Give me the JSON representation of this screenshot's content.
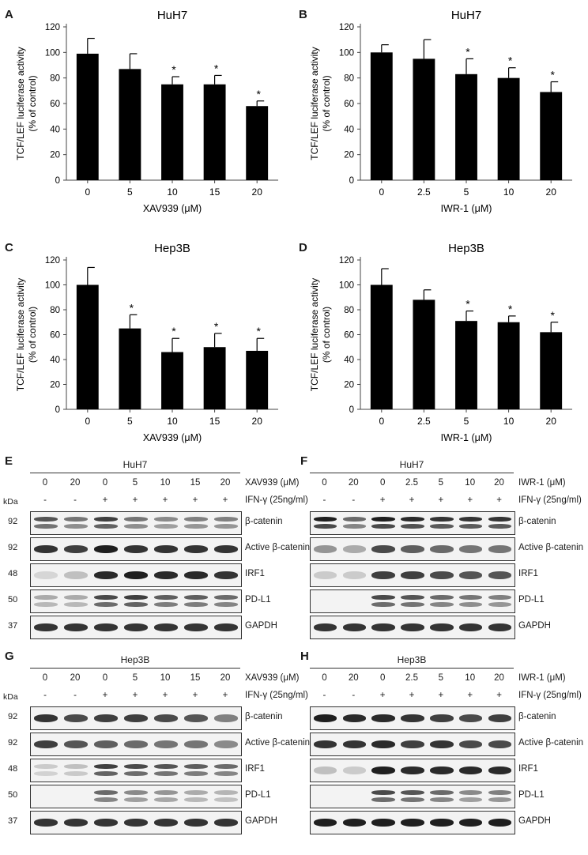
{
  "charts": {
    "A": {
      "letter": "A",
      "title": "HuH7",
      "xlabel": "XAV939 (μM)",
      "ylabel_line1": "TCF/LEF luciferase activity",
      "ylabel_line2": "(% of control)"
    },
    "B": {
      "letter": "B",
      "title": "HuH7",
      "xlabel": "IWR-1 (μM)",
      "ylabel_line1": "TCF/LEF luciferase activity",
      "ylabel_line2": "(% of control)"
    },
    "C": {
      "letter": "C",
      "title": "Hep3B",
      "xlabel": "XAV939 (μM)",
      "ylabel_line1": "TCF/LEF luciferase activity",
      "ylabel_line2": "(% of control)"
    },
    "D": {
      "letter": "D",
      "title": "Hep3B",
      "xlabel": "IWR-1 (μM)",
      "ylabel_line1": "TCF/LEF luciferase activity",
      "ylabel_line2": "(% of control)"
    }
  },
  "chart_data": [
    {
      "panel": "A",
      "type": "bar",
      "title": "HuH7",
      "xlabel": "XAV939 (μM)",
      "ylabel": "TCF/LEF luciferase activity (% of control)",
      "categories": [
        "0",
        "5",
        "10",
        "15",
        "20"
      ],
      "values": [
        99,
        87,
        75,
        75,
        58
      ],
      "errors": [
        12,
        12,
        6,
        7,
        4
      ],
      "significance": [
        "",
        "",
        "*",
        "*",
        "*"
      ],
      "ylim": [
        0,
        120
      ],
      "yticks": [
        0,
        20,
        40,
        60,
        80,
        100,
        120
      ],
      "color": "#000000"
    },
    {
      "panel": "B",
      "type": "bar",
      "title": "HuH7",
      "xlabel": "IWR-1 (μM)",
      "ylabel": "TCF/LEF luciferase activity (% of control)",
      "categories": [
        "0",
        "2.5",
        "5",
        "10",
        "20"
      ],
      "values": [
        100,
        95,
        83,
        80,
        69
      ],
      "errors": [
        6,
        15,
        12,
        8,
        8
      ],
      "significance": [
        "",
        "",
        "*",
        "*",
        "*"
      ],
      "ylim": [
        0,
        120
      ],
      "yticks": [
        0,
        20,
        40,
        60,
        80,
        100,
        120
      ],
      "color": "#000000"
    },
    {
      "panel": "C",
      "type": "bar",
      "title": "Hep3B",
      "xlabel": "XAV939 (μM)",
      "ylabel": "TCF/LEF luciferase activity (% of control)",
      "categories": [
        "0",
        "5",
        "10",
        "15",
        "20"
      ],
      "values": [
        100,
        65,
        46,
        50,
        47
      ],
      "errors": [
        14,
        11,
        11,
        11,
        10
      ],
      "significance": [
        "",
        "*",
        "*",
        "*",
        "*"
      ],
      "ylim": [
        0,
        120
      ],
      "yticks": [
        0,
        20,
        40,
        60,
        80,
        100,
        120
      ],
      "color": "#000000"
    },
    {
      "panel": "D",
      "type": "bar",
      "title": "Hep3B",
      "xlabel": "IWR-1 (μM)",
      "ylabel": "TCF/LEF luciferase activity (% of control)",
      "categories": [
        "0",
        "2.5",
        "5",
        "10",
        "20"
      ],
      "values": [
        100,
        88,
        71,
        70,
        62
      ],
      "errors": [
        13,
        8,
        8,
        5,
        8
      ],
      "significance": [
        "",
        "",
        "*",
        "*",
        "*"
      ],
      "ylim": [
        0,
        120
      ],
      "yticks": [
        0,
        20,
        40,
        60,
        80,
        100,
        120
      ],
      "color": "#000000"
    }
  ],
  "blots": {
    "E": {
      "letter": "E",
      "cell": "HuH7",
      "kda_label": "kDa",
      "drug_label": "XAV939 (μM)",
      "ifn_label": "IFN-γ (25ng/ml)",
      "doses": [
        "0",
        "20",
        "0",
        "5",
        "10",
        "15",
        "20"
      ],
      "ifn": [
        "-",
        "-",
        "+",
        "+",
        "+",
        "+",
        "+"
      ],
      "rows": [
        {
          "mw": "92",
          "protein": "β-catenin",
          "intensity": [
            0.7,
            0.55,
            0.8,
            0.55,
            0.45,
            0.5,
            0.5
          ],
          "double": true
        },
        {
          "mw": "92",
          "protein": "Active β-catenin",
          "intensity": [
            0.85,
            0.8,
            0.95,
            0.85,
            0.85,
            0.85,
            0.85
          ],
          "double": false
        },
        {
          "mw": "48",
          "protein": "IRF1",
          "intensity": [
            0.1,
            0.2,
            0.9,
            0.95,
            0.9,
            0.9,
            0.85
          ],
          "double": false
        },
        {
          "mw": "50",
          "protein": "PD-L1",
          "intensity": [
            0.3,
            0.3,
            0.75,
            0.8,
            0.65,
            0.65,
            0.6
          ],
          "double": true
        },
        {
          "mw": "37",
          "protein": "GAPDH",
          "intensity": [
            0.85,
            0.85,
            0.85,
            0.85,
            0.85,
            0.85,
            0.85
          ],
          "double": false
        }
      ]
    },
    "F": {
      "letter": "F",
      "cell": "HuH7",
      "kda_label": "",
      "drug_label": "IWR-1 (μM)",
      "ifn_label": "IFN-γ (25ng/ml)",
      "doses": [
        "0",
        "20",
        "0",
        "2.5",
        "5",
        "10",
        "20"
      ],
      "ifn": [
        "-",
        "-",
        "+",
        "+",
        "+",
        "+",
        "+"
      ],
      "rows": [
        {
          "mw": "",
          "protein": "β-catenin",
          "intensity": [
            0.95,
            0.6,
            0.95,
            0.9,
            0.85,
            0.85,
            0.85
          ],
          "double": true
        },
        {
          "mw": "",
          "protein": "Active β-catenin",
          "intensity": [
            0.4,
            0.3,
            0.75,
            0.65,
            0.6,
            0.55,
            0.55
          ],
          "double": false
        },
        {
          "mw": "",
          "protein": "IRF1",
          "intensity": [
            0.15,
            0.15,
            0.8,
            0.8,
            0.75,
            0.7,
            0.7
          ],
          "double": false
        },
        {
          "mw": "",
          "protein": "PD-L1",
          "intensity": [
            0.0,
            0.0,
            0.75,
            0.7,
            0.6,
            0.55,
            0.5
          ],
          "double": true
        },
        {
          "mw": "",
          "protein": "GAPDH",
          "intensity": [
            0.85,
            0.85,
            0.85,
            0.85,
            0.85,
            0.85,
            0.85
          ],
          "double": false
        }
      ]
    },
    "G": {
      "letter": "G",
      "cell": "Hep3B",
      "kda_label": "kDa",
      "drug_label": "XAV939 (μM)",
      "ifn_label": "IFN-γ (25ng/ml)",
      "doses": [
        "0",
        "20",
        "0",
        "5",
        "10",
        "15",
        "20"
      ],
      "ifn": [
        "-",
        "-",
        "+",
        "+",
        "+",
        "+",
        "+"
      ],
      "rows": [
        {
          "mw": "92",
          "protein": "β-catenin",
          "intensity": [
            0.85,
            0.75,
            0.8,
            0.8,
            0.75,
            0.7,
            0.5
          ],
          "double": false
        },
        {
          "mw": "92",
          "protein": "Active β-catenin",
          "intensity": [
            0.8,
            0.7,
            0.65,
            0.6,
            0.55,
            0.55,
            0.45
          ],
          "double": false
        },
        {
          "mw": "48",
          "protein": "IRF1",
          "intensity": [
            0.15,
            0.2,
            0.8,
            0.75,
            0.7,
            0.65,
            0.6
          ],
          "double": true
        },
        {
          "mw": "50",
          "protein": "PD-L1",
          "intensity": [
            0.0,
            0.0,
            0.6,
            0.45,
            0.4,
            0.3,
            0.25
          ],
          "double": true
        },
        {
          "mw": "37",
          "protein": "GAPDH",
          "intensity": [
            0.85,
            0.85,
            0.85,
            0.85,
            0.85,
            0.85,
            0.85
          ],
          "double": false
        }
      ]
    },
    "H": {
      "letter": "H",
      "cell": "Hep3B",
      "kda_label": "",
      "drug_label": "IWR-1 (μM)",
      "ifn_label": "IFN-γ (25ng/ml)",
      "doses": [
        "0",
        "20",
        "0",
        "2.5",
        "5",
        "10",
        "20"
      ],
      "ifn": [
        "-",
        "-",
        "+",
        "+",
        "+",
        "+",
        "+"
      ],
      "rows": [
        {
          "mw": "",
          "protein": "β-catenin",
          "intensity": [
            0.95,
            0.9,
            0.9,
            0.85,
            0.8,
            0.75,
            0.8
          ],
          "double": false
        },
        {
          "mw": "",
          "protein": "Active β-catenin",
          "intensity": [
            0.85,
            0.85,
            0.9,
            0.8,
            0.85,
            0.75,
            0.75
          ],
          "double": false
        },
        {
          "mw": "",
          "protein": "IRF1",
          "intensity": [
            0.2,
            0.15,
            0.95,
            0.9,
            0.9,
            0.9,
            0.9
          ],
          "double": false
        },
        {
          "mw": "",
          "protein": "PD-L1",
          "intensity": [
            0.0,
            0.0,
            0.75,
            0.7,
            0.6,
            0.45,
            0.5
          ],
          "double": true
        },
        {
          "mw": "",
          "protein": "GAPDH",
          "intensity": [
            0.95,
            0.95,
            0.95,
            0.95,
            0.95,
            0.95,
            0.95
          ],
          "double": false
        }
      ]
    }
  }
}
